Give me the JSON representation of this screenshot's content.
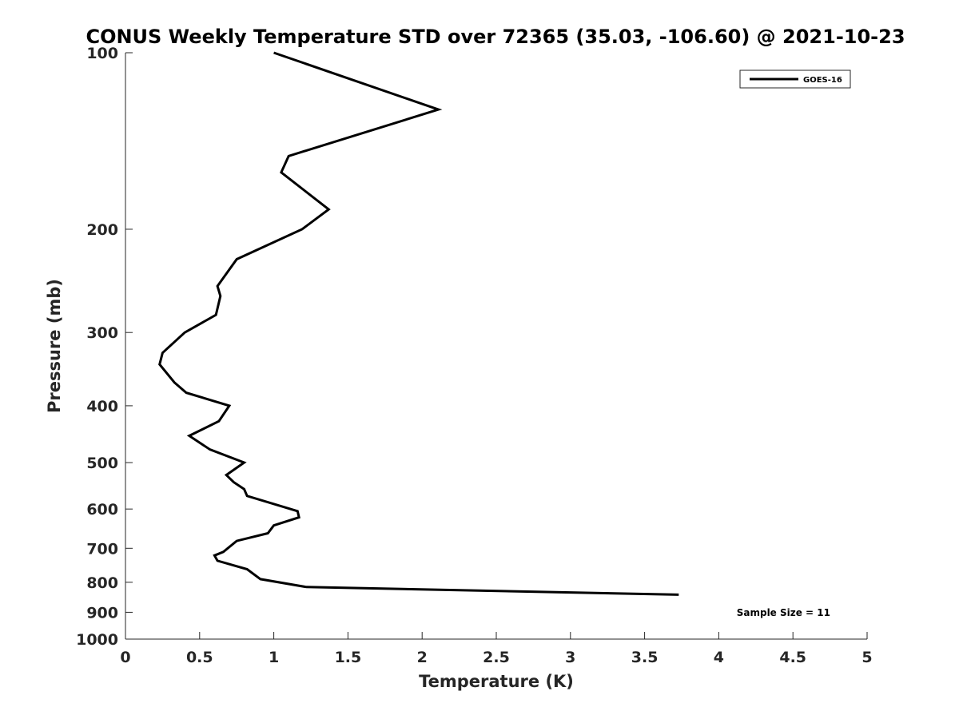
{
  "chart_data": {
    "type": "line",
    "title": "CONUS Weekly Temperature STD over 72365 (35.03, -106.60) @ 2021-10-23",
    "xlabel": "Temperature (K)",
    "ylabel": "Pressure (mb)",
    "xlim": [
      0,
      5
    ],
    "ylim": [
      100,
      1000
    ],
    "yscale": "log",
    "y_reversed": true,
    "grid": false,
    "x_ticks": [
      "0",
      "0.5",
      "1",
      "1.5",
      "2",
      "2.5",
      "3",
      "3.5",
      "4",
      "4.5",
      "5"
    ],
    "x_tick_values": [
      0,
      0.5,
      1,
      1.5,
      2,
      2.5,
      3,
      3.5,
      4,
      4.5,
      5
    ],
    "y_ticks": [
      "100",
      "200",
      "300",
      "400",
      "500",
      "600",
      "700",
      "800",
      "900",
      "1000"
    ],
    "y_tick_values": [
      100,
      200,
      300,
      400,
      500,
      600,
      700,
      800,
      900,
      1000
    ],
    "legend_position": "top-right",
    "annotation": "Sample Size = 11",
    "series": [
      {
        "name": "GOES-16",
        "color": "#000000",
        "x": [
          1.0,
          2.11,
          1.1,
          1.05,
          1.37,
          1.19,
          0.75,
          0.62,
          0.64,
          0.61,
          0.4,
          0.25,
          0.23,
          0.33,
          0.41,
          0.7,
          0.63,
          0.43,
          0.57,
          0.8,
          0.68,
          0.73,
          0.8,
          0.82,
          1.16,
          1.17,
          1.0,
          0.96,
          0.75,
          0.66,
          0.6,
          0.62,
          0.82,
          0.91,
          1.22,
          3.73
        ],
        "y": [
          100,
          125,
          150,
          160,
          185,
          200,
          225,
          250,
          260,
          280,
          300,
          325,
          340,
          365,
          380,
          400,
          425,
          450,
          475,
          500,
          525,
          540,
          555,
          570,
          605,
          620,
          640,
          660,
          680,
          710,
          720,
          735,
          760,
          790,
          815,
          840
        ]
      }
    ]
  }
}
